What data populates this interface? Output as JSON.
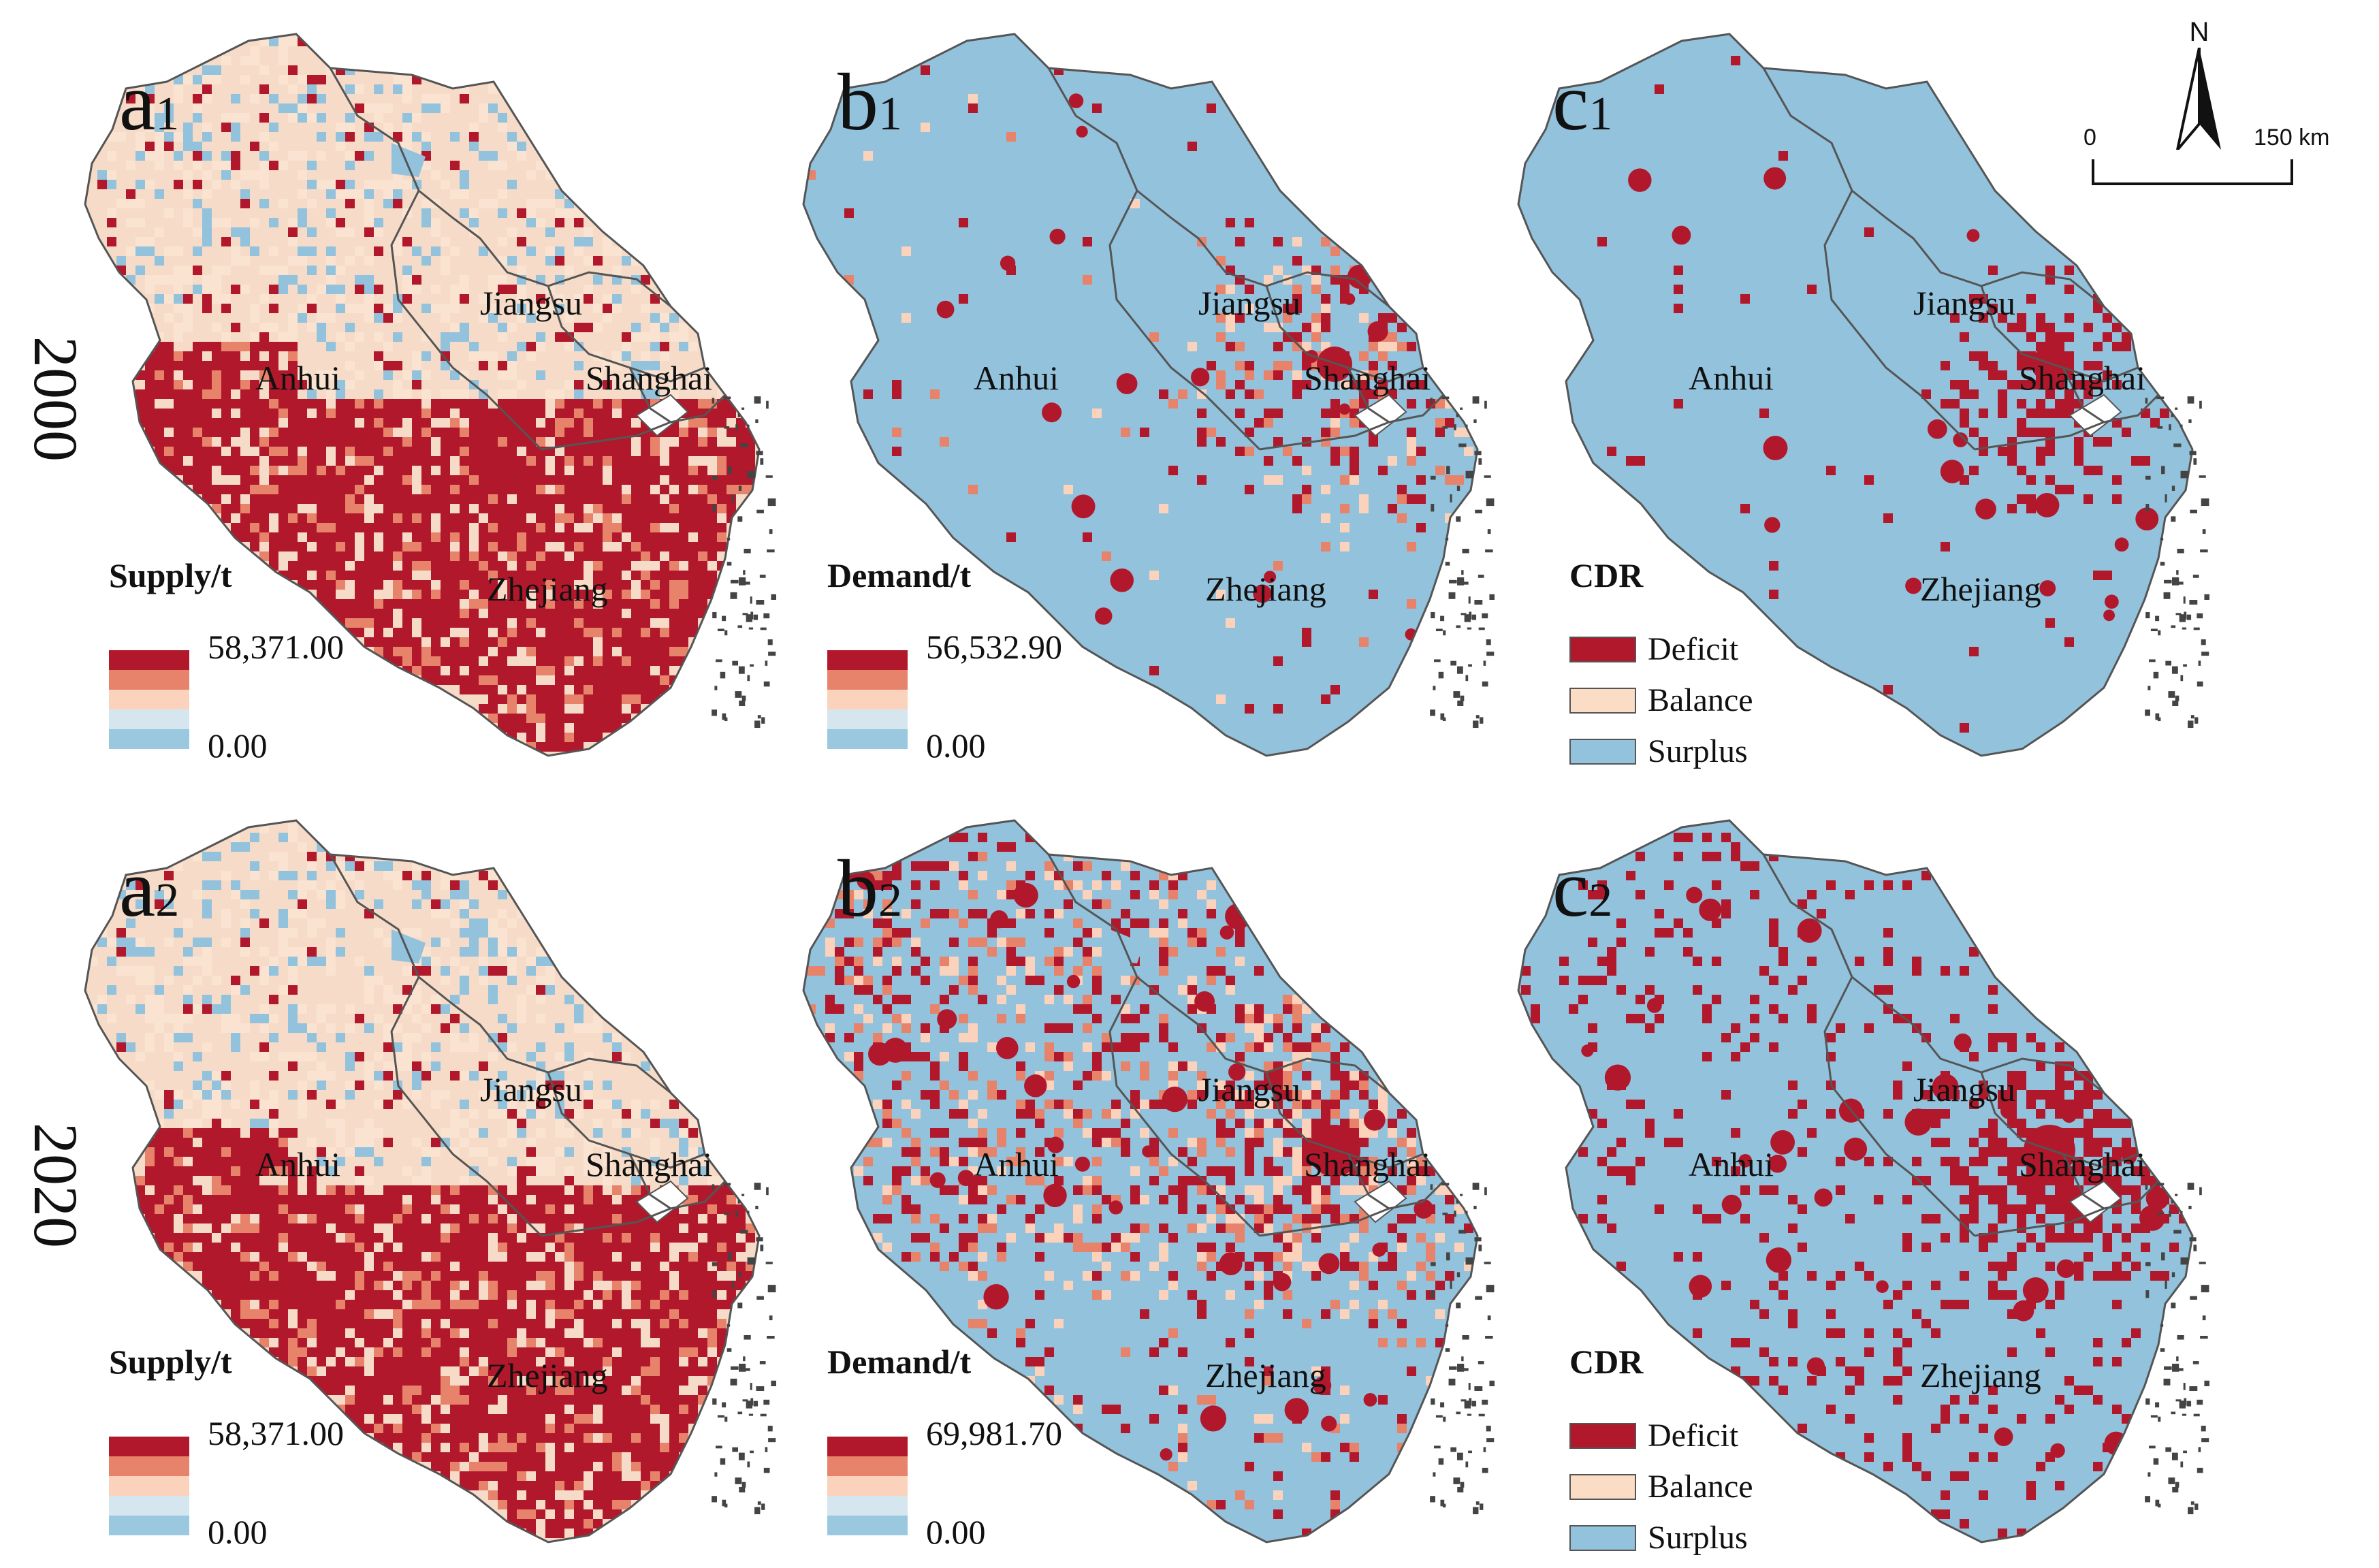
{
  "rows": [
    {
      "year": "2000",
      "panels": [
        {
          "letter": "a",
          "sub": "1",
          "kind": "supply",
          "legend_title": "Supply/t",
          "max": "58,371.00",
          "min": "0.00"
        },
        {
          "letter": "b",
          "sub": "1",
          "kind": "demand",
          "legend_title": "Demand/t",
          "max": "56,532.90",
          "min": "0.00"
        },
        {
          "letter": "c",
          "sub": "1",
          "kind": "cdr",
          "legend_title": "CDR"
        }
      ]
    },
    {
      "year": "2020",
      "panels": [
        {
          "letter": "a",
          "sub": "2",
          "kind": "supply",
          "legend_title": "Supply/t",
          "max": "58,371.00",
          "min": "0.00"
        },
        {
          "letter": "b",
          "sub": "2",
          "kind": "demand",
          "legend_title": "Demand/t",
          "max": "69,981.70",
          "min": "0.00"
        },
        {
          "letter": "c",
          "sub": "2",
          "kind": "cdr",
          "legend_title": "CDR"
        }
      ]
    }
  ],
  "provinces": [
    "Jiangsu",
    "Anhui",
    "Shanghai",
    "Zhejiang"
  ],
  "cdr_classes": [
    "Deficit",
    "Balance",
    "Surplus"
  ],
  "north_arrow": "N",
  "scale_bar": {
    "start": "0",
    "end": "150 km"
  },
  "colors": {
    "ramp": [
      "#b2182b",
      "#e8836b",
      "#fbd3bd",
      "#d6e6ef",
      "#9ac8df"
    ],
    "deficit": "#b2182b",
    "balance": "#fbdcc4",
    "surplus": "#92c2dc",
    "outline": "#555555",
    "coast": "#555555"
  }
}
